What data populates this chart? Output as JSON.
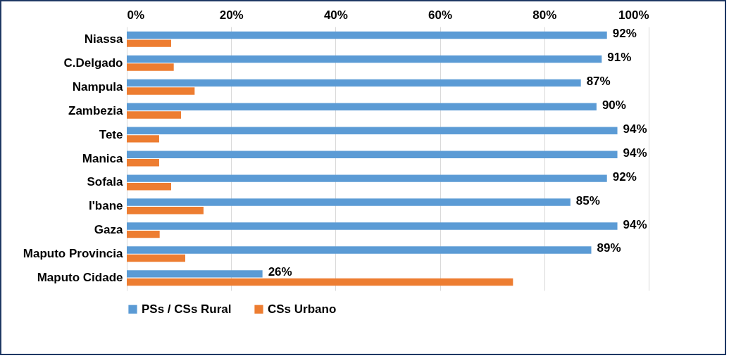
{
  "chart_data": {
    "type": "bar",
    "orientation": "horizontal",
    "categories": [
      "Niassa",
      "C.Delgado",
      "Nampula",
      "Zambezia",
      "Tete",
      "Manica",
      "Sofala",
      "I'bane",
      "Gaza",
      "Maputo Provincia",
      "Maputo Cidade"
    ],
    "series": [
      {
        "name": "PSs / CSs Rural",
        "color": "#5b9bd5",
        "values": [
          92,
          91,
          87,
          90,
          94,
          94,
          92,
          85,
          94,
          89,
          26
        ],
        "value_labels": [
          "92%",
          "91%",
          "87%",
          "90%",
          "94%",
          "94%",
          "92%",
          "85%",
          "94%",
          "89%",
          "26%"
        ]
      },
      {
        "name": "CSs Urbano",
        "color": "#ed7d31",
        "values": [
          8.5,
          9,
          13,
          10.4,
          6.2,
          6.2,
          8.5,
          14.7,
          6.3,
          11.2,
          74
        ]
      }
    ],
    "xlim": [
      0,
      100
    ],
    "xticks": [
      {
        "value": 0,
        "label": "0%"
      },
      {
        "value": 20,
        "label": "20%"
      },
      {
        "value": 40,
        "label": "40%"
      },
      {
        "value": 60,
        "label": "60%"
      },
      {
        "value": 80,
        "label": "80%"
      },
      {
        "value": 100,
        "label": "100%"
      }
    ],
    "grid": "x",
    "legend": "bottom"
  }
}
